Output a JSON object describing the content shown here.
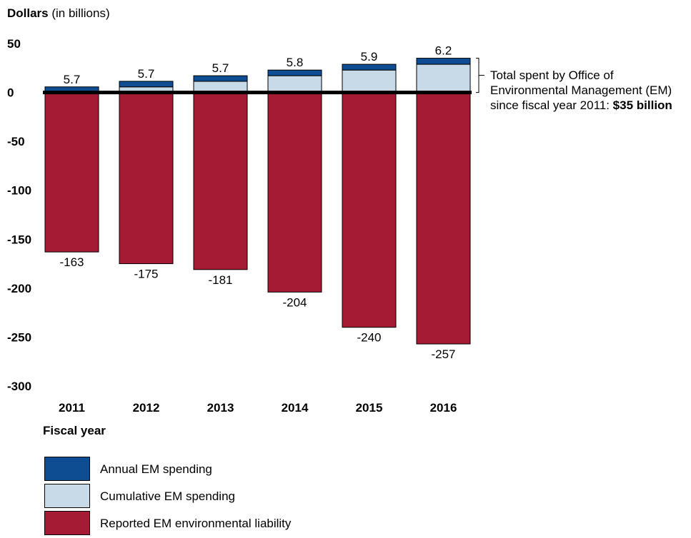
{
  "chart_data": {
    "type": "bar",
    "ylabel_bold": "Dollars",
    "ylabel_rest": " (in billions)",
    "xlabel": "Fiscal year",
    "categories": [
      "2011",
      "2012",
      "2013",
      "2014",
      "2015",
      "2016"
    ],
    "ylim": [
      -300,
      50
    ],
    "yticks": [
      "50",
      "0",
      "-50",
      "-100",
      "-150",
      "-200",
      "-250",
      "-300"
    ],
    "series": [
      {
        "name": "Annual EM spending",
        "color": "#0f4d92",
        "values": [
          5.7,
          5.7,
          5.7,
          5.8,
          5.9,
          6.2
        ]
      },
      {
        "name": "Cumulative EM spending",
        "color": "#c8d9e8",
        "values": [
          0,
          5.7,
          11.4,
          17.1,
          22.9,
          28.8
        ]
      },
      {
        "name": "Reported EM environmental liability",
        "color": "#a51b33",
        "values": [
          -163,
          -175,
          -181,
          -204,
          -240,
          -257
        ]
      }
    ],
    "top_labels": [
      "5.7",
      "5.7",
      "5.7",
      "5.8",
      "5.9",
      "6.2"
    ],
    "bottom_labels": [
      "-163",
      "-175",
      "-181",
      "-204",
      "-240",
      "-257"
    ],
    "annotation": {
      "text": "Total spent by Office of Environmental Management (EM) since fiscal year 2011: ",
      "line1": "Total spent by Office of",
      "line2": "Environmental Management (EM)",
      "line3": "since fiscal year 2011: ",
      "bold": "$35 billion"
    }
  }
}
